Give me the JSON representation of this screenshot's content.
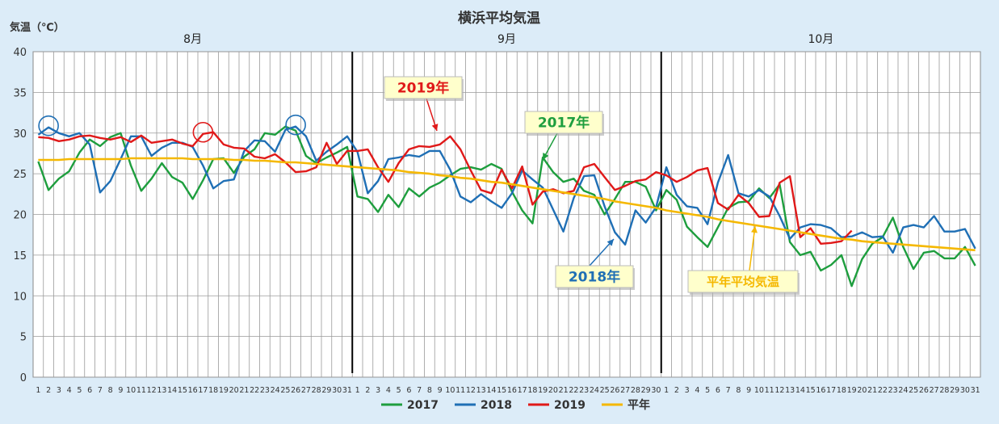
{
  "chart_data": {
    "type": "line",
    "title": "横浜平均気温",
    "ylabel": "気温（℃）",
    "ylim": [
      0,
      40
    ],
    "yticks": [
      0,
      5,
      10,
      15,
      20,
      25,
      30,
      35,
      40
    ],
    "grid": true,
    "legend_position": "bottom",
    "months": [
      {
        "label": "8月",
        "days": 31
      },
      {
        "label": "9月",
        "days": 30
      },
      {
        "label": "10月",
        "days": 31
      }
    ],
    "series": [
      {
        "name": "2017",
        "color": "#1e9e3e",
        "values": [
          26.5,
          23.0,
          24.4,
          25.3,
          27.6,
          29.2,
          28.4,
          29.5,
          30.0,
          26.0,
          22.9,
          24.4,
          26.3,
          24.6,
          23.9,
          21.9,
          24.2,
          26.8,
          26.9,
          25.1,
          27.1,
          28.0,
          30.0,
          29.8,
          30.8,
          30.3,
          27.2,
          26.3,
          27.0,
          27.6,
          28.3,
          22.2,
          21.9,
          20.3,
          22.4,
          20.9,
          23.2,
          22.2,
          23.3,
          23.9,
          24.8,
          25.6,
          25.8,
          25.5,
          26.2,
          25.6,
          22.8,
          20.5,
          18.9,
          27.0,
          25.2,
          24.0,
          24.4,
          22.9,
          22.4,
          20.0,
          21.9,
          24.0,
          24.0,
          23.4,
          20.5,
          23.0,
          21.8,
          18.5,
          17.2,
          16.0,
          18.4,
          20.8,
          21.5,
          21.6,
          23.2,
          22.0,
          23.7,
          16.6,
          15.0,
          15.4,
          13.1,
          13.8,
          15.0,
          11.2,
          14.5,
          16.4,
          17.2,
          19.6,
          16.0,
          13.3,
          15.3,
          15.5,
          14.6,
          14.6,
          16.0,
          13.7
        ]
      },
      {
        "name": "2018",
        "color": "#1f6fb5",
        "values": [
          29.8,
          30.7,
          30.0,
          29.6,
          30.0,
          28.6,
          22.7,
          24.1,
          26.8,
          29.6,
          29.6,
          27.2,
          28.2,
          28.8,
          28.8,
          28.3,
          26.0,
          23.2,
          24.1,
          24.3,
          27.8,
          29.1,
          29.0,
          27.7,
          30.4,
          30.8,
          29.6,
          26.6,
          27.7,
          28.6,
          29.6,
          27.7,
          22.6,
          24.1,
          26.8,
          27.0,
          27.3,
          27.1,
          27.8,
          27.8,
          25.5,
          22.2,
          21.5,
          22.5,
          21.6,
          20.8,
          22.6,
          25.4,
          24.3,
          23.3,
          20.6,
          17.9,
          22.0,
          24.7,
          24.8,
          21.0,
          17.8,
          16.3,
          20.5,
          19.0,
          20.9,
          25.8,
          22.4,
          21.0,
          20.8,
          18.8,
          23.9,
          27.3,
          22.6,
          22.2,
          23.0,
          22.2,
          19.8,
          17.0,
          18.4,
          18.8,
          18.7,
          18.3,
          17.2,
          17.3,
          17.8,
          17.2,
          17.3,
          15.3,
          18.4,
          18.7,
          18.4,
          19.8,
          17.9,
          17.9,
          18.2,
          15.8
        ]
      },
      {
        "name": "2019",
        "color": "#e01919",
        "values": [
          29.5,
          29.4,
          29.0,
          29.2,
          29.6,
          29.7,
          29.4,
          29.2,
          29.5,
          28.9,
          29.7,
          28.8,
          29.0,
          29.2,
          28.7,
          28.4,
          29.9,
          30.1,
          28.6,
          28.2,
          28.1,
          27.1,
          26.9,
          27.4,
          26.4,
          25.2,
          25.3,
          25.8,
          28.8,
          26.2,
          27.8,
          27.8,
          28.0,
          25.8,
          24.0,
          26.3,
          28.0,
          28.4,
          28.3,
          28.6,
          29.6,
          28.0,
          25.4,
          23.0,
          22.6,
          25.5,
          23.2,
          25.9,
          21.2,
          22.8,
          23.1,
          22.6,
          22.9,
          25.8,
          26.2,
          24.6,
          23.0,
          23.5,
          24.1,
          24.3,
          25.2,
          24.8,
          24.0,
          24.6,
          25.4,
          25.7,
          21.4,
          20.6,
          22.4,
          21.4,
          19.7,
          19.8,
          23.9,
          24.7,
          17.2,
          18.3,
          16.4,
          16.5,
          16.7,
          18.0
        ]
      },
      {
        "name": "平年",
        "color": "#f5b800",
        "values": [
          26.7,
          26.7,
          26.7,
          26.8,
          26.8,
          26.8,
          26.8,
          26.8,
          26.8,
          26.9,
          26.9,
          26.9,
          26.9,
          26.9,
          26.9,
          26.8,
          26.8,
          26.8,
          26.8,
          26.7,
          26.7,
          26.6,
          26.6,
          26.5,
          26.4,
          26.4,
          26.3,
          26.2,
          26.1,
          26.0,
          25.9,
          25.8,
          25.7,
          25.6,
          25.5,
          25.4,
          25.2,
          25.1,
          25.0,
          24.8,
          24.7,
          24.5,
          24.4,
          24.2,
          24.0,
          23.9,
          23.7,
          23.5,
          23.3,
          23.1,
          22.9,
          22.7,
          22.5,
          22.3,
          22.1,
          21.9,
          21.6,
          21.4,
          21.2,
          21.0,
          20.8,
          20.5,
          20.3,
          20.1,
          19.9,
          19.7,
          19.4,
          19.2,
          19.0,
          18.8,
          18.6,
          18.4,
          18.2,
          18.0,
          17.8,
          17.6,
          17.4,
          17.2,
          17.0,
          16.9,
          16.7,
          16.6,
          16.5,
          16.4,
          16.3,
          16.2,
          16.1,
          16.0,
          15.9,
          15.8,
          15.7,
          15.6
        ]
      }
    ],
    "annotations": [
      {
        "text": "2019年",
        "series": "2019",
        "color": "#e01919"
      },
      {
        "text": "2017年",
        "series": "2017",
        "color": "#1e9e3e"
      },
      {
        "text": "2018年",
        "series": "2018",
        "color": "#1f6fb5"
      },
      {
        "text": "平年平均気温",
        "series": "平年",
        "color": "#f5b800"
      }
    ]
  }
}
